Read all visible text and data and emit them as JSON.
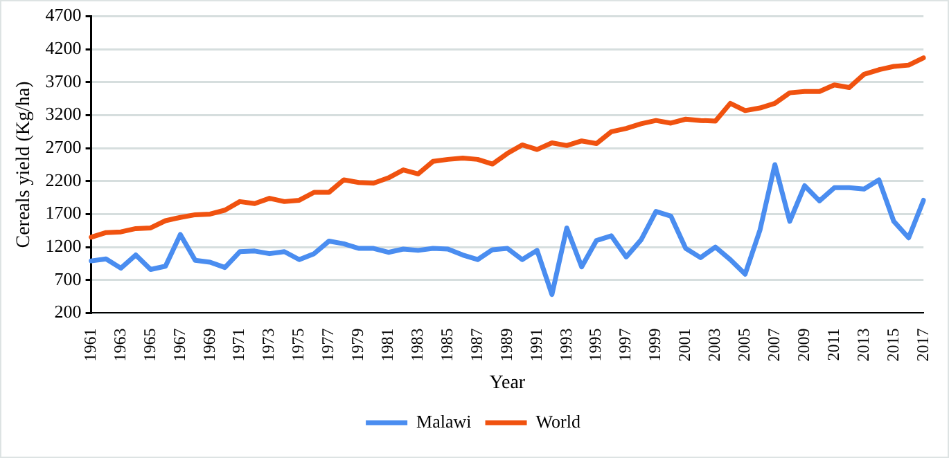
{
  "chart_data": {
    "type": "line",
    "xlabel": "Year",
    "ylabel": "Cereals yield (Kg/ha)",
    "categories": [
      "1961",
      null,
      "1963",
      null,
      "1965",
      null,
      "1967",
      null,
      "1969",
      null,
      "1971",
      null,
      "1973",
      null,
      "1975",
      null,
      "1977",
      null,
      "1979",
      null,
      "1981",
      null,
      "1983",
      null,
      "1985",
      null,
      "1987",
      null,
      "1989",
      null,
      "1991",
      null,
      "1993",
      null,
      "1995",
      null,
      "1997",
      null,
      "1999",
      null,
      "2001",
      null,
      "2003",
      null,
      "2005",
      null,
      "2007",
      null,
      "2009",
      null,
      "2011",
      null,
      "2013",
      null,
      "2015",
      null,
      "2017"
    ],
    "series": [
      {
        "name": "Malawi",
        "color": "#4a8df0",
        "values": [
          990,
          1020,
          880,
          1080,
          860,
          910,
          1390,
          1000,
          970,
          890,
          1130,
          1140,
          1100,
          1130,
          1010,
          1100,
          1290,
          1250,
          1180,
          1180,
          1120,
          1170,
          1150,
          1180,
          1170,
          1080,
          1010,
          1160,
          1180,
          1010,
          1150,
          480,
          1490,
          900,
          1300,
          1370,
          1050,
          1310,
          1740,
          1670,
          1180,
          1040,
          1200,
          1010,
          790,
          1460,
          2450,
          1590,
          2130,
          1900,
          2100,
          2100,
          2080,
          2220,
          1590,
          1340,
          1910
        ]
      },
      {
        "name": "World",
        "color": "#f0520f",
        "values": [
          1350,
          1420,
          1430,
          1480,
          1490,
          1600,
          1650,
          1690,
          1700,
          1760,
          1890,
          1860,
          1940,
          1890,
          1910,
          2030,
          2030,
          2220,
          2180,
          2170,
          2250,
          2370,
          2310,
          2500,
          2530,
          2550,
          2530,
          2460,
          2620,
          2750,
          2680,
          2780,
          2740,
          2810,
          2770,
          2950,
          3000,
          3070,
          3120,
          3080,
          3140,
          3120,
          3110,
          3380,
          3270,
          3310,
          3380,
          3540,
          3560,
          3560,
          3660,
          3620,
          3820,
          3890,
          3940,
          3960,
          4070
        ]
      }
    ],
    "ylim": [
      200,
      4700
    ],
    "yticks": [
      200,
      700,
      1200,
      1700,
      2200,
      2700,
      3200,
      3700,
      4200,
      4700
    ],
    "grid": "y",
    "legend": "bottom",
    "marker": "none",
    "line_style": "solid"
  }
}
